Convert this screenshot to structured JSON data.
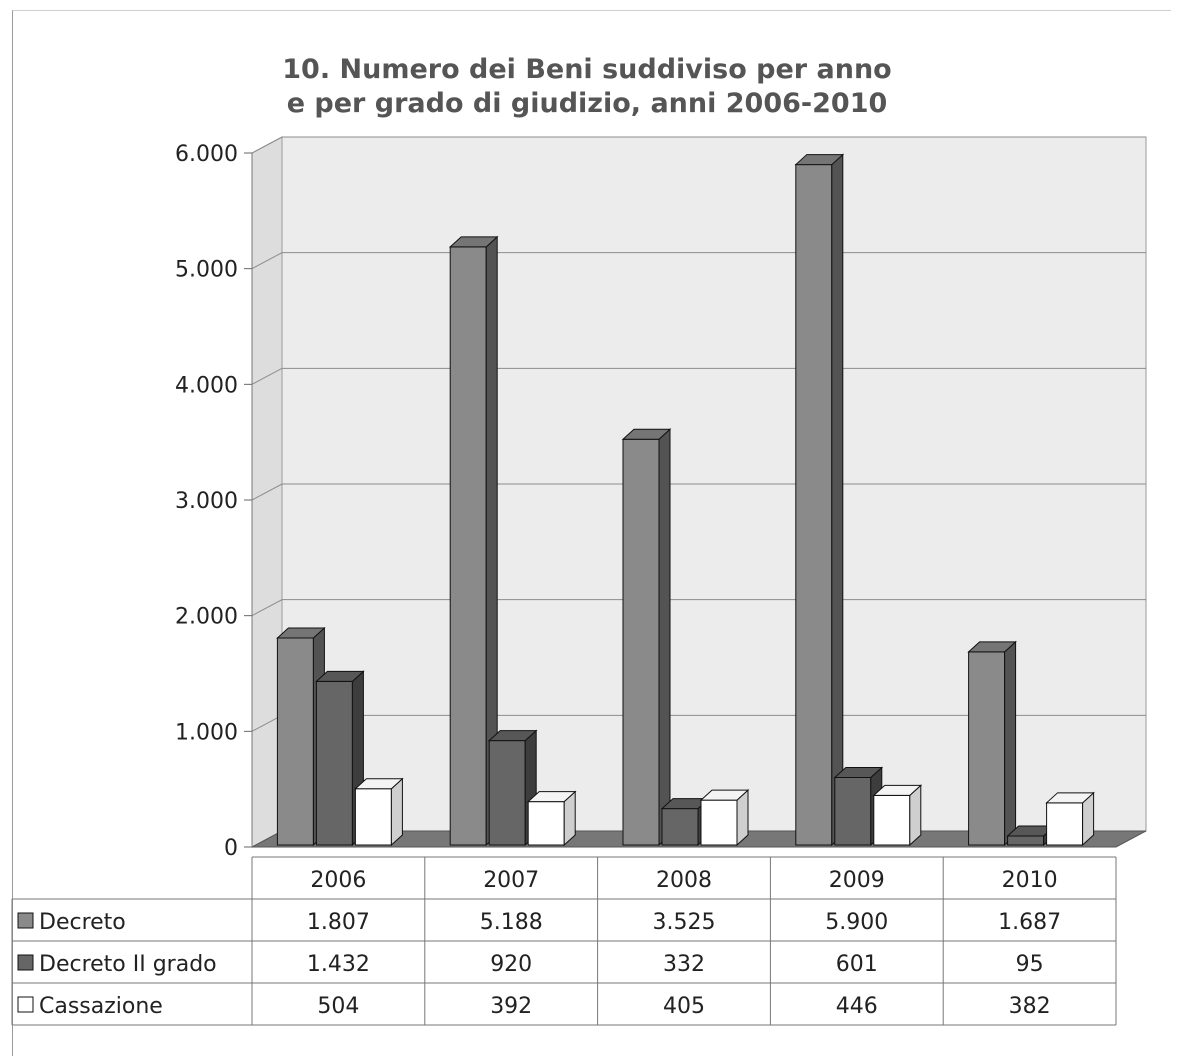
{
  "chart_data": {
    "type": "bar",
    "title": "10. Numero dei Beni suddiviso per anno",
    "subtitle": "e per grado di giudizio, anni 2006-2010",
    "categories": [
      "2006",
      "2007",
      "2008",
      "2009",
      "2010"
    ],
    "series": [
      {
        "name": "Decreto",
        "values": [
          1807,
          5188,
          3525,
          5900,
          1687
        ],
        "labels": [
          "1.807",
          "5.188",
          "3.525",
          "5.900",
          "1.687"
        ],
        "color": "#8a8a8a"
      },
      {
        "name": "Decreto II grado",
        "values": [
          1432,
          920,
          332,
          601,
          95
        ],
        "labels": [
          "1.432",
          "920",
          "332",
          "601",
          "95"
        ],
        "color": "#666666"
      },
      {
        "name": "Cassazione",
        "values": [
          504,
          392,
          405,
          446,
          382
        ],
        "labels": [
          "504",
          "392",
          "405",
          "446",
          "382"
        ],
        "color": "#ffffff"
      }
    ],
    "yticks": [
      0,
      1000,
      2000,
      3000,
      4000,
      5000,
      6000
    ],
    "ytick_labels": [
      "0",
      "1.000",
      "2.000",
      "3.000",
      "4.000",
      "5.000",
      "6.000"
    ],
    "ylim": [
      0,
      6000
    ],
    "grid": true,
    "legend": "data-table-left",
    "data_table": true,
    "style": "3d-clustered-column"
  }
}
